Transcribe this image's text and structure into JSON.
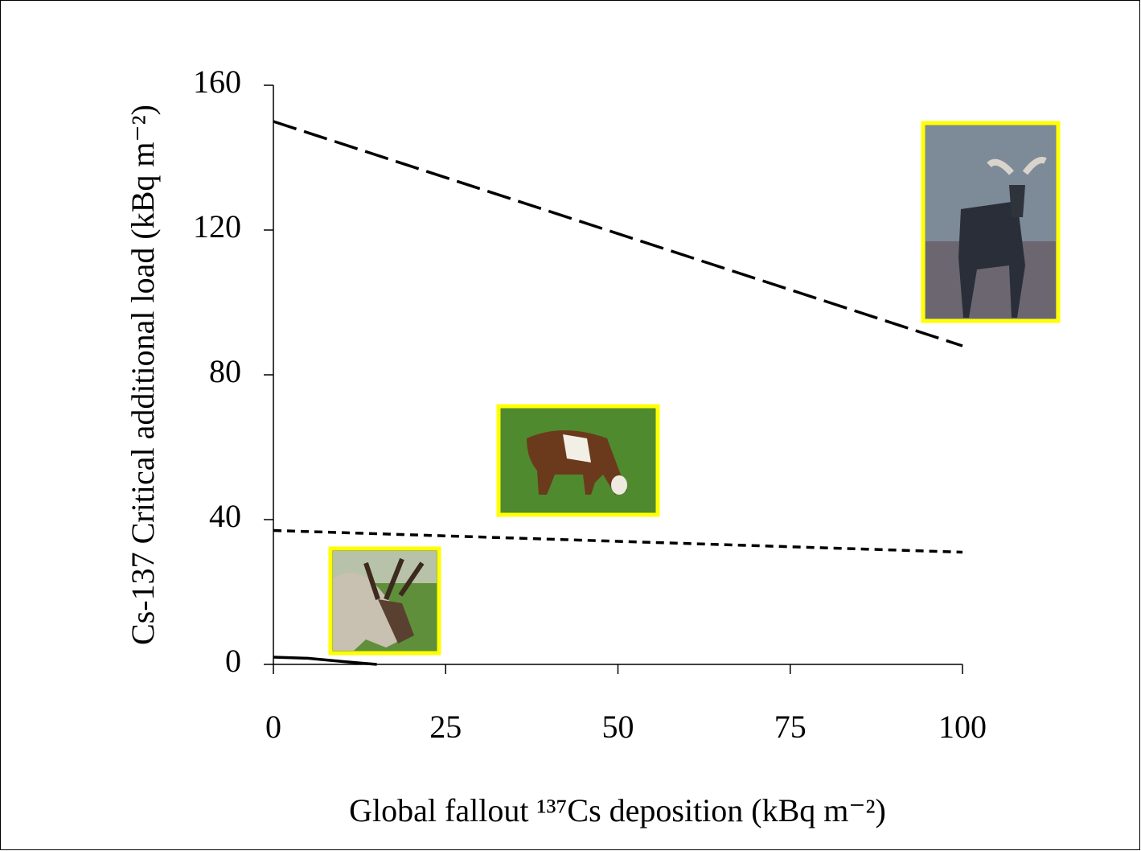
{
  "chart_data": {
    "type": "line",
    "xlabel": "Global fallout ¹³⁷Cs deposition (kBq m⁻²)",
    "ylabel": "Cs-137 Critical additional  load (kBq m⁻²)",
    "xlim": [
      0,
      100
    ],
    "xticks": [
      0,
      25,
      50,
      75,
      100
    ],
    "ylim": [
      0,
      160
    ],
    "yticks": [
      0,
      40,
      80,
      120,
      160
    ],
    "series": [
      {
        "color": "#000000",
        "dash": "30,10",
        "x": [
          0,
          100
        ],
        "values": [
          150,
          88
        ]
      },
      {
        "color": "#000000",
        "dash": "10,7",
        "x": [
          0,
          100
        ],
        "values": [
          37,
          31
        ]
      },
      {
        "color": "#000000",
        "dash": "none",
        "x": [
          0,
          5,
          10,
          15
        ],
        "values": [
          2,
          1.7,
          0.8,
          0
        ]
      }
    ]
  }
}
